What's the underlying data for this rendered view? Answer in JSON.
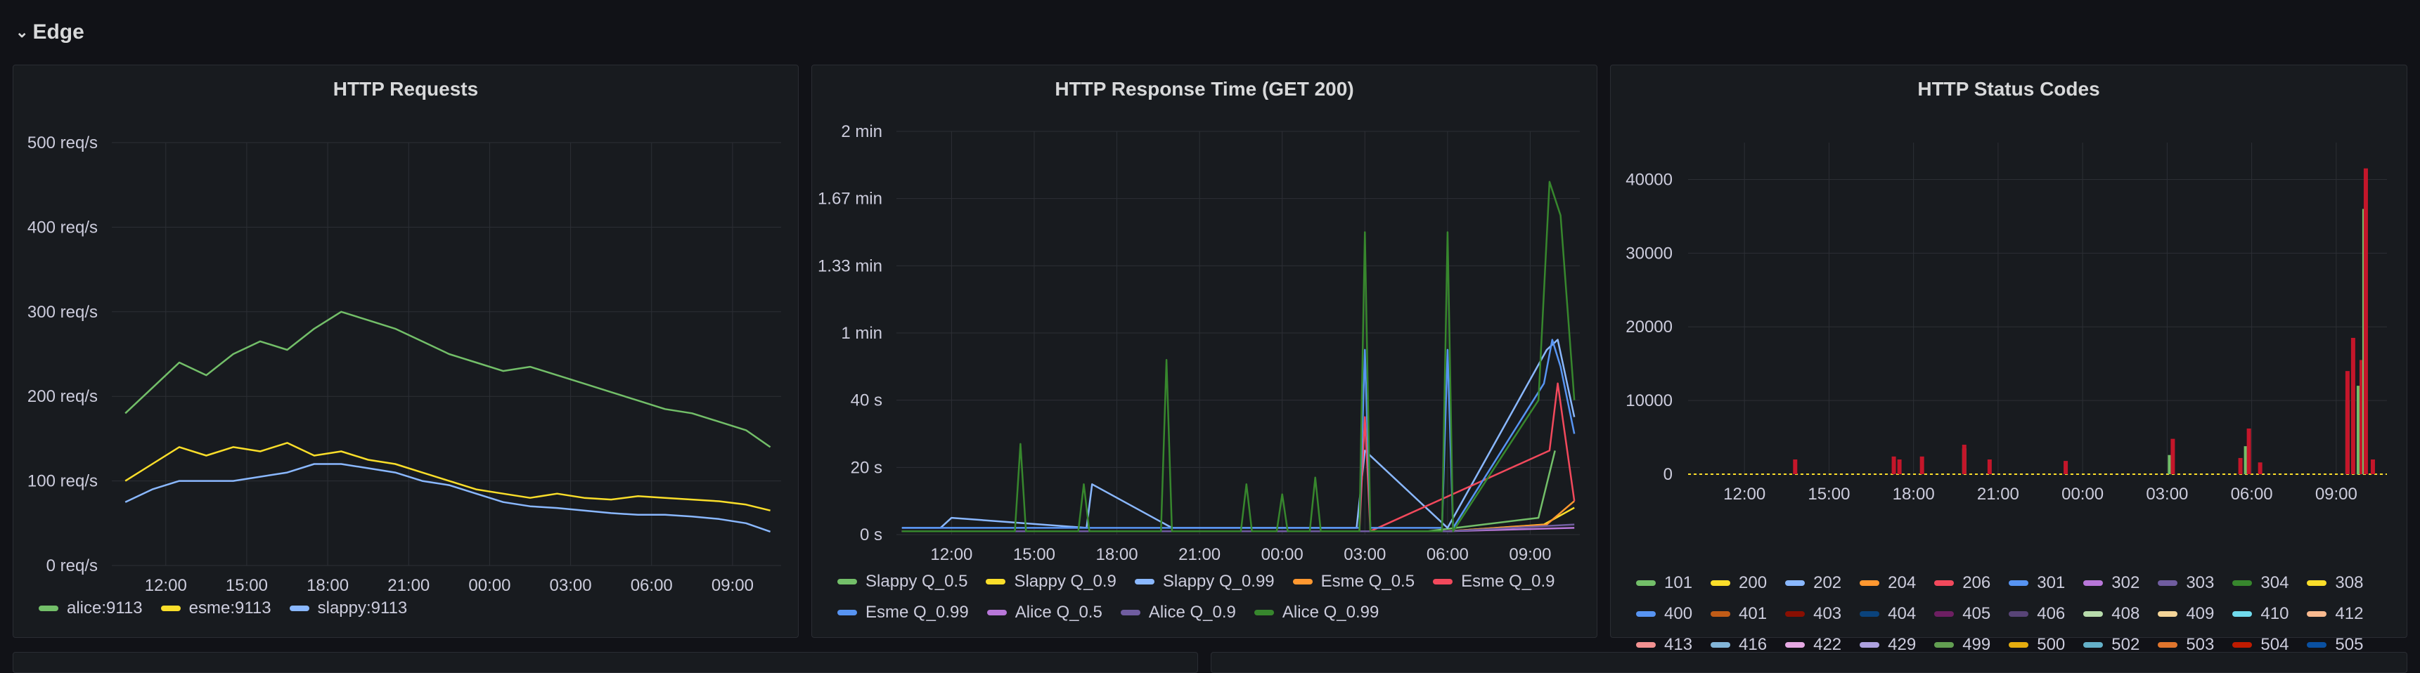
{
  "row": {
    "title": "Edge",
    "chevron": "⌄"
  },
  "colors": {
    "background": "#111217",
    "panel": "#181b1f",
    "grid": "#2c2f35",
    "text": "#ccccdc"
  },
  "chart_data": [
    {
      "type": "line",
      "title": "HTTP Requests",
      "x_ticks": [
        "12:00",
        "15:00",
        "18:00",
        "21:00",
        "00:00",
        "03:00",
        "06:00",
        "09:00"
      ],
      "y_ticks": [
        "0 req/s",
        "100 req/s",
        "200 req/s",
        "300 req/s",
        "400 req/s",
        "500 req/s"
      ],
      "ylim": [
        0,
        500
      ],
      "xlim": [
        10,
        34.8
      ],
      "grid": true,
      "legend_position": "bottom-left",
      "series": [
        {
          "name": "alice:9113",
          "color": "#73bf69",
          "x": [
            10.5,
            11.5,
            12.5,
            13.5,
            14.5,
            15.5,
            16.5,
            17.5,
            18.5,
            19.5,
            20.5,
            21.5,
            22.5,
            23.5,
            24.5,
            25.5,
            26.5,
            27.5,
            28.5,
            29.5,
            30.5,
            31.5,
            32.5,
            33.5,
            34.4
          ],
          "values": [
            180,
            210,
            240,
            225,
            250,
            265,
            255,
            280,
            300,
            290,
            280,
            265,
            250,
            240,
            230,
            235,
            225,
            215,
            205,
            195,
            185,
            180,
            170,
            160,
            140
          ]
        },
        {
          "name": "esme:9113",
          "color": "#fade2a",
          "x": [
            10.5,
            11.5,
            12.5,
            13.5,
            14.5,
            15.5,
            16.5,
            17.5,
            18.5,
            19.5,
            20.5,
            21.5,
            22.5,
            23.5,
            24.5,
            25.5,
            26.5,
            27.5,
            28.5,
            29.5,
            30.5,
            31.5,
            32.5,
            33.5,
            34.4
          ],
          "values": [
            100,
            120,
            140,
            130,
            140,
            135,
            145,
            130,
            135,
            125,
            120,
            110,
            100,
            90,
            85,
            80,
            85,
            80,
            78,
            82,
            80,
            78,
            76,
            72,
            65
          ]
        },
        {
          "name": "slappy:9113",
          "color": "#8ab8ff",
          "x": [
            10.5,
            11.5,
            12.5,
            13.5,
            14.5,
            15.5,
            16.5,
            17.5,
            18.5,
            19.5,
            20.5,
            21.5,
            22.5,
            23.5,
            24.5,
            25.5,
            26.5,
            27.5,
            28.5,
            29.5,
            30.5,
            31.5,
            32.5,
            33.5,
            34.4
          ],
          "values": [
            75,
            90,
            100,
            100,
            100,
            105,
            110,
            120,
            120,
            115,
            110,
            100,
            95,
            85,
            75,
            70,
            68,
            65,
            62,
            60,
            60,
            58,
            55,
            50,
            40
          ]
        }
      ]
    },
    {
      "type": "line",
      "title": "HTTP Response Time (GET 200)",
      "x_ticks": [
        "12:00",
        "15:00",
        "18:00",
        "21:00",
        "00:00",
        "03:00",
        "06:00",
        "09:00"
      ],
      "y_ticks": [
        "0 s",
        "20 s",
        "40 s",
        "1 min",
        "1.33 min",
        "1.67 min",
        "2 min"
      ],
      "y_tick_values_seconds": [
        0,
        20,
        40,
        60,
        80,
        100,
        120
      ],
      "ylim": [
        0,
        120
      ],
      "xlim": [
        10,
        34.8
      ],
      "grid": true,
      "legend_position": "bottom-left",
      "series": [
        {
          "name": "Slappy Q_0.5",
          "color": "#73bf69",
          "x": [
            10.2,
            13.3,
            15.6,
            17.3,
            18.6,
            21.3,
            23.0,
            24.1,
            25.2,
            26.6,
            27.0,
            28.9,
            29.3,
            33.3,
            33.9
          ],
          "values": [
            1,
            1,
            1,
            1,
            1,
            1,
            1,
            1,
            1,
            1,
            1,
            1,
            1,
            5,
            25
          ]
        },
        {
          "name": "Slappy Q_0.9",
          "color": "#fade2a",
          "x": [
            10.2,
            20.0,
            30.0,
            33.5,
            34.6
          ],
          "values": [
            1,
            1,
            1,
            3,
            8
          ]
        },
        {
          "name": "Slappy Q_0.99",
          "color": "#8ab8ff",
          "x": [
            10.2,
            11.6,
            12.0,
            16.9,
            17.1,
            20.0,
            26.7,
            27.0,
            30.0,
            33.6,
            34.0,
            34.6
          ],
          "values": [
            2,
            2,
            5,
            2,
            15,
            2,
            2,
            25,
            2,
            55,
            58,
            35
          ]
        },
        {
          "name": "Esme Q_0.5",
          "color": "#ff9830",
          "x": [
            10.2,
            20.0,
            30.0,
            33.6,
            34.6
          ],
          "values": [
            1,
            1,
            1,
            3,
            10
          ]
        },
        {
          "name": "Esme Q_0.9",
          "color": "#f2495c",
          "x": [
            10.2,
            26.8,
            27.0,
            27.2,
            33.7,
            34.0,
            34.6
          ],
          "values": [
            1,
            1,
            35,
            1,
            25,
            45,
            10
          ]
        },
        {
          "name": "Esme Q_0.99",
          "color": "#5794f2",
          "x": [
            10.2,
            26.8,
            27.0,
            27.2,
            29.8,
            30.0,
            30.2,
            33.5,
            33.8,
            34.1,
            34.6
          ],
          "values": [
            2,
            2,
            55,
            2,
            2,
            55,
            2,
            45,
            58,
            50,
            30
          ]
        },
        {
          "name": "Alice Q_0.5",
          "color": "#b877d9",
          "x": [
            10.2,
            20.0,
            30.0,
            34.6
          ],
          "values": [
            1,
            1,
            1,
            2
          ]
        },
        {
          "name": "Alice Q_0.9",
          "color": "#705da0",
          "x": [
            10.2,
            20.0,
            30.0,
            34.6
          ],
          "values": [
            1,
            1,
            1,
            3
          ]
        },
        {
          "name": "Alice Q_0.99",
          "color": "#37872d",
          "x": [
            10.2,
            14.3,
            14.5,
            14.7,
            16.6,
            16.8,
            17.0,
            19.6,
            19.8,
            20.0,
            22.5,
            22.7,
            22.9,
            23.8,
            24.0,
            24.2,
            25.0,
            25.2,
            25.4,
            26.8,
            27.0,
            27.2,
            29.8,
            30.0,
            30.2,
            33.3,
            33.7,
            34.1,
            34.6
          ],
          "values": [
            1,
            1,
            27,
            1,
            1,
            15,
            1,
            1,
            52,
            1,
            1,
            15,
            1,
            1,
            12,
            1,
            1,
            17,
            1,
            1,
            90,
            1,
            1,
            90,
            1,
            40,
            105,
            95,
            40
          ]
        }
      ]
    },
    {
      "type": "bar",
      "title": "HTTP Status Codes",
      "x_ticks": [
        "12:00",
        "15:00",
        "18:00",
        "21:00",
        "00:00",
        "03:00",
        "06:00",
        "09:00"
      ],
      "y_ticks": [
        "0",
        "10000",
        "20000",
        "30000",
        "40000"
      ],
      "ylim": [
        0,
        45000
      ],
      "xlim": [
        10,
        34.8
      ],
      "grid": true,
      "legend_position": "bottom-left",
      "bars": [
        {
          "x": 13.8,
          "series": "504",
          "color": "#c4162a",
          "value": 2000
        },
        {
          "x": 17.3,
          "series": "504",
          "color": "#c4162a",
          "value": 2400
        },
        {
          "x": 17.5,
          "series": "504",
          "color": "#c4162a",
          "value": 2000
        },
        {
          "x": 18.3,
          "series": "504",
          "color": "#c4162a",
          "value": 2400
        },
        {
          "x": 19.8,
          "series": "502",
          "color": "#73bf69",
          "value": 3500
        },
        {
          "x": 19.8,
          "series": "504",
          "color": "#c4162a",
          "value": 4000
        },
        {
          "x": 20.7,
          "series": "504",
          "color": "#c4162a",
          "value": 2000
        },
        {
          "x": 23.4,
          "series": "504",
          "color": "#c4162a",
          "value": 1800
        },
        {
          "x": 27.1,
          "series": "502",
          "color": "#73bf69",
          "value": 2600
        },
        {
          "x": 27.2,
          "series": "504",
          "color": "#c4162a",
          "value": 4800
        },
        {
          "x": 29.6,
          "series": "504",
          "color": "#c4162a",
          "value": 2200
        },
        {
          "x": 29.8,
          "series": "502",
          "color": "#73bf69",
          "value": 3800
        },
        {
          "x": 29.9,
          "series": "504",
          "color": "#c4162a",
          "value": 6200
        },
        {
          "x": 30.3,
          "series": "504",
          "color": "#c4162a",
          "value": 1600
        },
        {
          "x": 33.4,
          "series": "502",
          "color": "#73bf69",
          "value": 10000
        },
        {
          "x": 33.4,
          "series": "504",
          "color": "#c4162a",
          "value": 14000
        },
        {
          "x": 33.6,
          "series": "504",
          "color": "#c4162a",
          "value": 18500
        },
        {
          "x": 33.8,
          "series": "502",
          "color": "#73bf69",
          "value": 12000
        },
        {
          "x": 33.9,
          "series": "504",
          "color": "#c4162a",
          "value": 15500
        },
        {
          "x": 34.0,
          "series": "502",
          "color": "#73bf69",
          "value": 36000
        },
        {
          "x": 34.05,
          "series": "504",
          "color": "#c4162a",
          "value": 41500
        },
        {
          "x": 34.3,
          "series": "504",
          "color": "#c4162a",
          "value": 2000
        }
      ],
      "legend": [
        {
          "name": "101",
          "color": "#73bf69"
        },
        {
          "name": "200",
          "color": "#fade2a"
        },
        {
          "name": "202",
          "color": "#8ab8ff"
        },
        {
          "name": "204",
          "color": "#ff9830"
        },
        {
          "name": "206",
          "color": "#f2495c"
        },
        {
          "name": "301",
          "color": "#5794f2"
        },
        {
          "name": "302",
          "color": "#b877d9"
        },
        {
          "name": "303",
          "color": "#705da0"
        },
        {
          "name": "304",
          "color": "#37872d"
        },
        {
          "name": "308",
          "color": "#fade2a"
        },
        {
          "name": "400",
          "color": "#5794f2"
        },
        {
          "name": "401",
          "color": "#c15c17"
        },
        {
          "name": "403",
          "color": "#890f02"
        },
        {
          "name": "404",
          "color": "#0a437c"
        },
        {
          "name": "405",
          "color": "#6d1f62"
        },
        {
          "name": "406",
          "color": "#584477"
        },
        {
          "name": "408",
          "color": "#b7dbab"
        },
        {
          "name": "409",
          "color": "#f4d598"
        },
        {
          "name": "410",
          "color": "#70dbed"
        },
        {
          "name": "412",
          "color": "#f9ba8f"
        },
        {
          "name": "413",
          "color": "#f29191"
        },
        {
          "name": "416",
          "color": "#82b5d8"
        },
        {
          "name": "422",
          "color": "#e5a8e2"
        },
        {
          "name": "429",
          "color": "#aea2e0"
        },
        {
          "name": "499",
          "color": "#629e51"
        },
        {
          "name": "500",
          "color": "#e5ac0e"
        },
        {
          "name": "502",
          "color": "#64b0c8"
        },
        {
          "name": "503",
          "color": "#e0752d"
        },
        {
          "name": "504",
          "color": "#bf1b00"
        },
        {
          "name": "505",
          "color": "#0a50a1"
        }
      ]
    }
  ]
}
